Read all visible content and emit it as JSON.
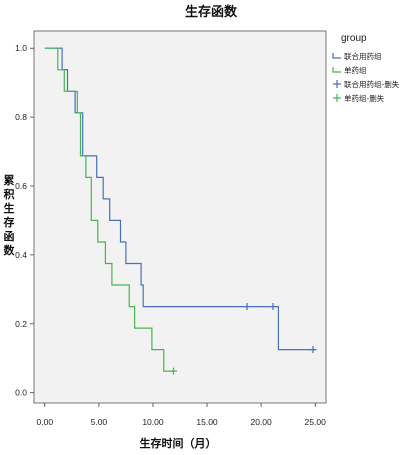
{
  "chart_data": {
    "type": "line",
    "step": true,
    "title": "生存函数",
    "xlabel": "生存时间（月）",
    "ylabel_chars": [
      "累",
      "积",
      "生",
      "存",
      "函",
      "数"
    ],
    "xlim": [
      -1,
      26
    ],
    "ylim": [
      -0.03,
      1.05
    ],
    "xticks": [
      0,
      5,
      10,
      15,
      20,
      25
    ],
    "xtick_labels": [
      "0.00",
      "5.00",
      "10.00",
      "15.00",
      "20.00",
      "25.00"
    ],
    "yticks": [
      0,
      0.2,
      0.4,
      0.6,
      0.8,
      1.0
    ],
    "ytick_labels": [
      "0.0",
      "0.2",
      "0.4",
      "0.6",
      "0.8",
      "1.0"
    ],
    "grid": false,
    "legend_position": "right",
    "legend_title": "group",
    "legend": [
      {
        "label": "联合用药组",
        "color": "#4a6fc0",
        "marker": "line"
      },
      {
        "label": "单药组",
        "color": "#46b550",
        "marker": "line"
      },
      {
        "label": "联合用药组-删失",
        "color": "#4a6fc0",
        "marker": "plus"
      },
      {
        "label": "单药组-删失",
        "color": "#46b550",
        "marker": "plus"
      }
    ],
    "series": [
      {
        "name": "联合用药组",
        "color": "#4a6fc0",
        "steps": [
          {
            "x": 0,
            "y": 1.0
          },
          {
            "x": 1.6,
            "y": 0.938
          },
          {
            "x": 2.1,
            "y": 0.875
          },
          {
            "x": 2.8,
            "y": 0.8125
          },
          {
            "x": 3.5,
            "y": 0.6875
          },
          {
            "x": 4.8,
            "y": 0.625
          },
          {
            "x": 5.4,
            "y": 0.5625
          },
          {
            "x": 6.0,
            "y": 0.5
          },
          {
            "x": 7.0,
            "y": 0.4375
          },
          {
            "x": 7.5,
            "y": 0.375
          },
          {
            "x": 8.9,
            "y": 0.3125
          },
          {
            "x": 9.1,
            "y": 0.25
          },
          {
            "x": 21.6,
            "y": 0.125
          },
          {
            "x": 24.8,
            "y": 0.125
          }
        ],
        "censored": [
          {
            "x": 18.7,
            "y": 0.25
          },
          {
            "x": 21.1,
            "y": 0.25
          },
          {
            "x": 24.8,
            "y": 0.125
          }
        ]
      },
      {
        "name": "单药组",
        "color": "#46b550",
        "steps": [
          {
            "x": 0,
            "y": 1.0
          },
          {
            "x": 1.2,
            "y": 0.9375
          },
          {
            "x": 1.8,
            "y": 0.875
          },
          {
            "x": 3.0,
            "y": 0.8125
          },
          {
            "x": 3.3,
            "y": 0.6875
          },
          {
            "x": 3.8,
            "y": 0.625
          },
          {
            "x": 4.3,
            "y": 0.5
          },
          {
            "x": 4.9,
            "y": 0.4375
          },
          {
            "x": 5.6,
            "y": 0.375
          },
          {
            "x": 6.2,
            "y": 0.3125
          },
          {
            "x": 7.8,
            "y": 0.25
          },
          {
            "x": 8.3,
            "y": 0.1875
          },
          {
            "x": 9.9,
            "y": 0.125
          },
          {
            "x": 11.0,
            "y": 0.0625
          },
          {
            "x": 11.9,
            "y": 0.0625
          }
        ],
        "censored": [
          {
            "x": 11.9,
            "y": 0.0625
          }
        ]
      }
    ]
  }
}
